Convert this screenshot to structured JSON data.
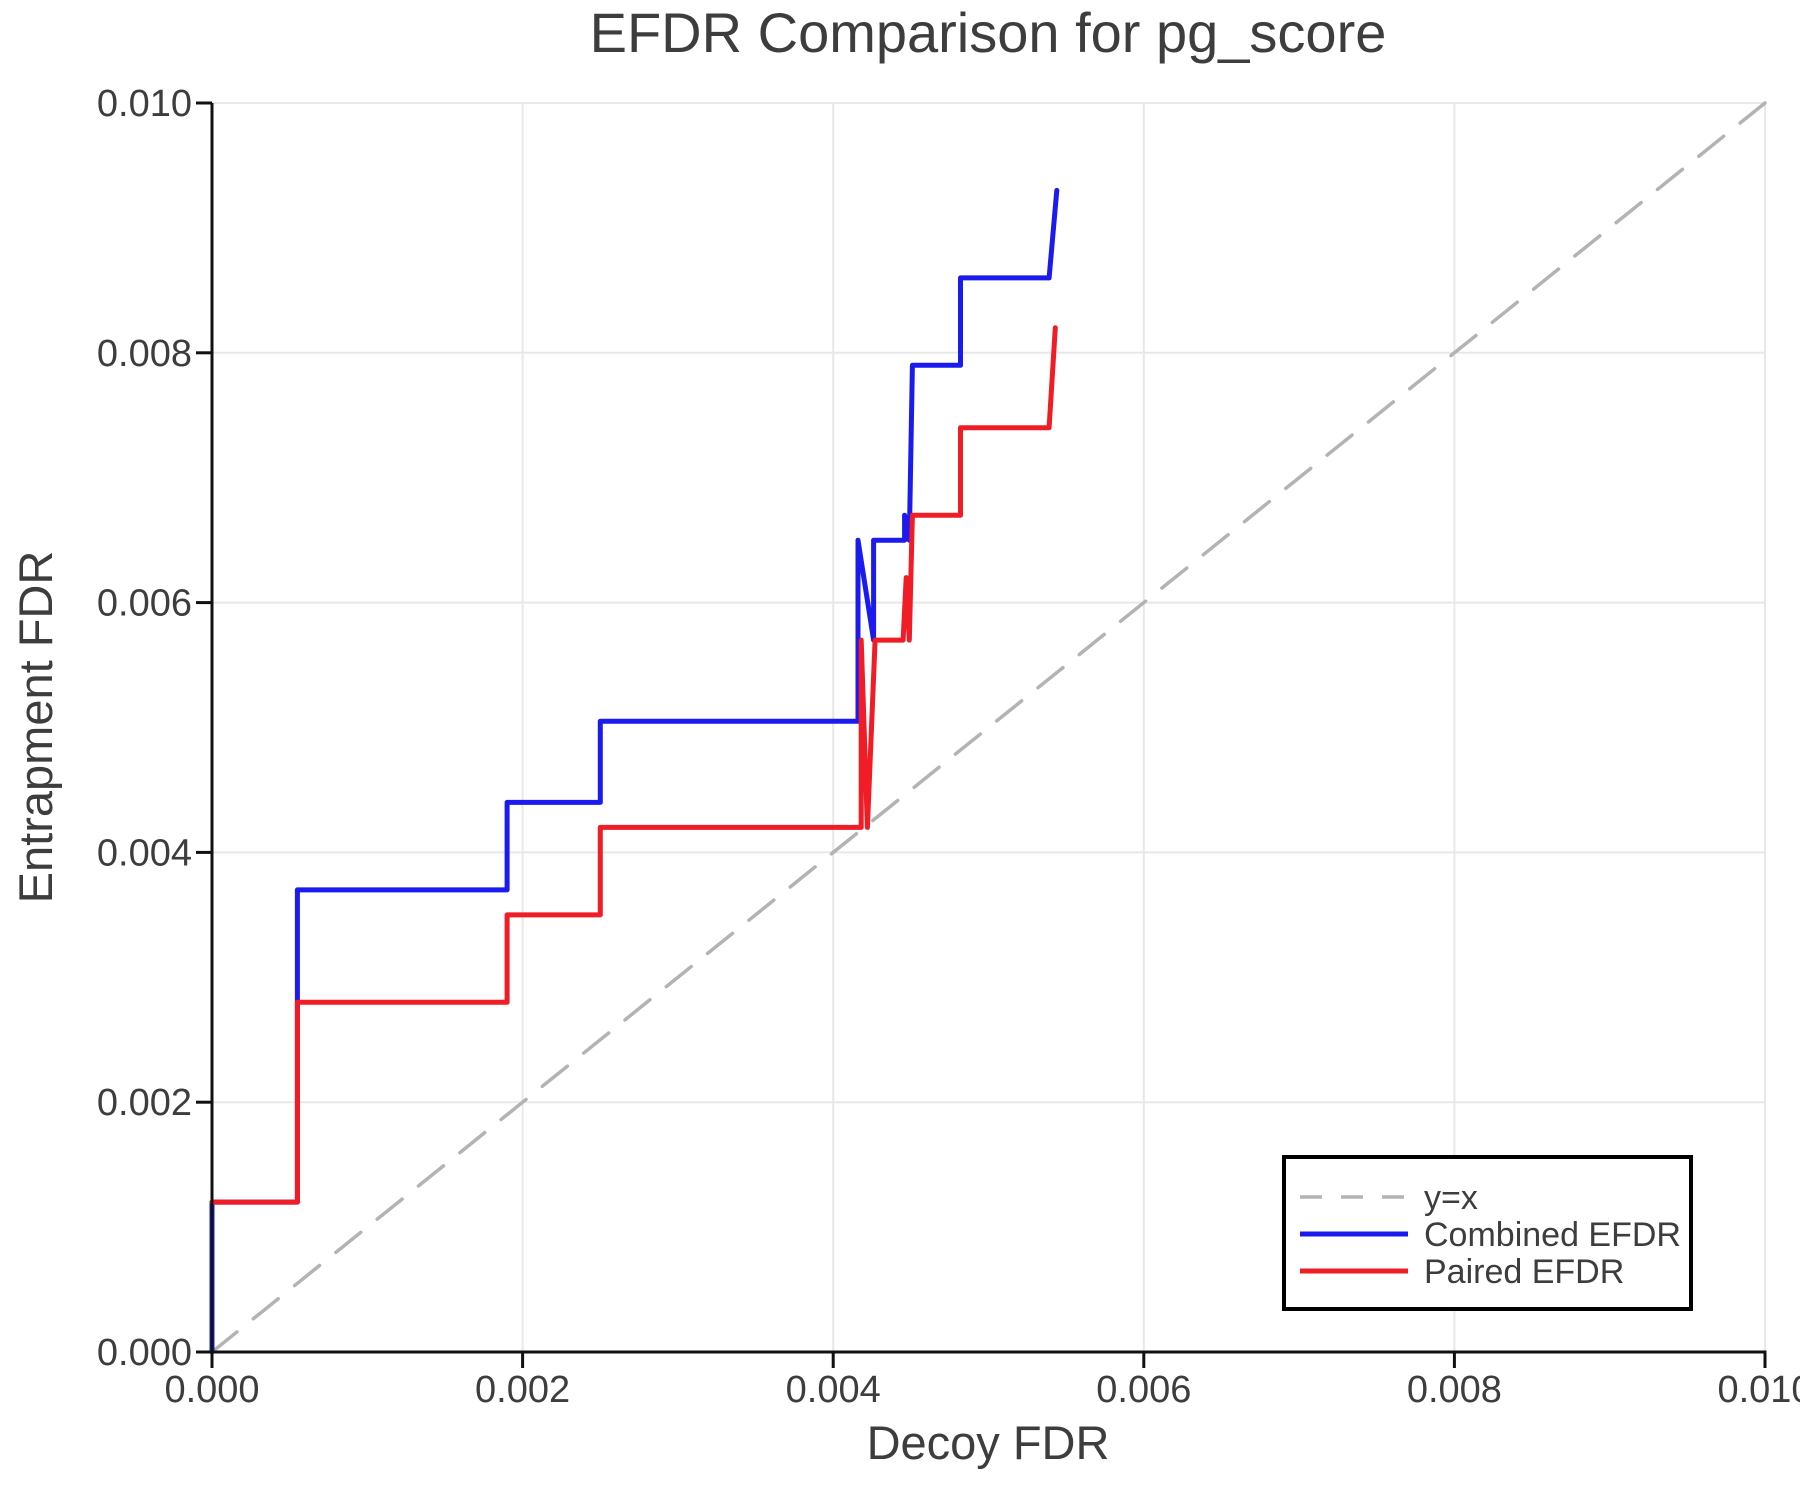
{
  "chart_data": {
    "type": "line",
    "title": "EFDR Comparison for pg_score",
    "xlabel": "Decoy FDR",
    "ylabel": "Entrapment FDR",
    "xlim": [
      0.0,
      0.01
    ],
    "ylim": [
      0.0,
      0.01
    ],
    "grid": true,
    "legend_position": "lower right",
    "xticks": {
      "values": [
        0.0,
        0.002,
        0.004,
        0.006,
        0.008,
        0.01
      ],
      "labels": [
        "0.000",
        "0.002",
        "0.004",
        "0.006",
        "0.008",
        "0.010"
      ]
    },
    "yticks": {
      "values": [
        0.0,
        0.002,
        0.004,
        0.006,
        0.008,
        0.01
      ],
      "labels": [
        "0.000",
        "0.002",
        "0.004",
        "0.006",
        "0.008",
        "0.010"
      ]
    },
    "series": [
      {
        "name": "y=x",
        "style": "dashed",
        "color": "#b3b3b3",
        "width": 3.5,
        "points": [
          [
            0.0,
            0.0
          ],
          [
            0.01,
            0.01
          ]
        ]
      },
      {
        "name": "Combined EFDR",
        "style": "solid",
        "color": "#1b1bef",
        "width": 5,
        "points": [
          [
            0.0,
            0.0
          ],
          [
            0.0,
            0.0012
          ],
          [
            0.00055,
            0.0012
          ],
          [
            0.00055,
            0.0037
          ],
          [
            0.0019,
            0.0037
          ],
          [
            0.0019,
            0.0044
          ],
          [
            0.0025,
            0.0044
          ],
          [
            0.0025,
            0.00505
          ],
          [
            0.00416,
            0.00505
          ],
          [
            0.00416,
            0.0065
          ],
          [
            0.00426,
            0.0057
          ],
          [
            0.00426,
            0.0065
          ],
          [
            0.00446,
            0.0065
          ],
          [
            0.00446,
            0.0067
          ],
          [
            0.00449,
            0.0065
          ],
          [
            0.00451,
            0.0079
          ],
          [
            0.00482,
            0.0079
          ],
          [
            0.00482,
            0.0086
          ],
          [
            0.00539,
            0.0086
          ],
          [
            0.00544,
            0.0093
          ]
        ]
      },
      {
        "name": "Paired EFDR",
        "style": "solid",
        "color": "#f01c26",
        "width": 5,
        "points": [
          [
            0.0,
            0.0012
          ],
          [
            0.00055,
            0.0012
          ],
          [
            0.00055,
            0.0028
          ],
          [
            0.0019,
            0.0028
          ],
          [
            0.0019,
            0.0035
          ],
          [
            0.0025,
            0.0035
          ],
          [
            0.0025,
            0.0042
          ],
          [
            0.00418,
            0.0042
          ],
          [
            0.00418,
            0.0057
          ],
          [
            0.00422,
            0.0042
          ],
          [
            0.00427,
            0.0057
          ],
          [
            0.00445,
            0.0057
          ],
          [
            0.00447,
            0.0062
          ],
          [
            0.00449,
            0.0057
          ],
          [
            0.00451,
            0.0067
          ],
          [
            0.00482,
            0.0067
          ],
          [
            0.00482,
            0.0074
          ],
          [
            0.00539,
            0.0074
          ],
          [
            0.00543,
            0.0082
          ]
        ]
      }
    ]
  },
  "style": {
    "background": "#ffffff",
    "text_color": "#3d3d3d",
    "grid_color": "#e8e8e8",
    "axis_color": "#111111",
    "legend_border_color": "#000000",
    "legend_bg": "#ffffff"
  }
}
